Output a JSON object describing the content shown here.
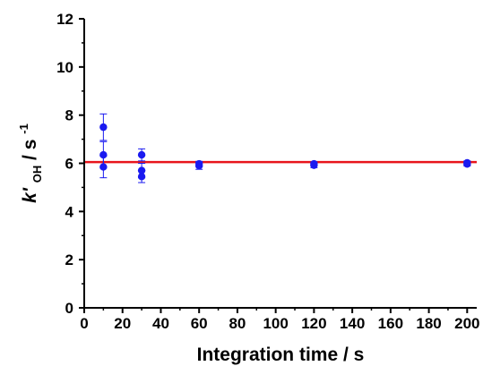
{
  "chart_data": {
    "type": "scatter",
    "title": "",
    "xlabel": "Integration time / s",
    "ylabel": {
      "k": "k'",
      "sub": "OH",
      "unit": " / s",
      "sup": "-1"
    },
    "xlim": [
      0,
      205
    ],
    "ylim": [
      0,
      12
    ],
    "xticks": [
      0,
      20,
      40,
      60,
      80,
      100,
      120,
      140,
      160,
      180,
      200
    ],
    "yticks": [
      0,
      2,
      4,
      6,
      8,
      10,
      12
    ],
    "grid": false,
    "legend": "none",
    "points": [
      {
        "x": 10,
        "y": 7.5,
        "err": 0.55
      },
      {
        "x": 10,
        "y": 6.35,
        "err": 0.55
      },
      {
        "x": 10,
        "y": 5.85,
        "err": 0.45
      },
      {
        "x": 30,
        "y": 6.35,
        "err": 0.25
      },
      {
        "x": 30,
        "y": 5.7,
        "err": 0.3
      },
      {
        "x": 30,
        "y": 5.45,
        "err": 0.25
      },
      {
        "x": 60,
        "y": 5.9,
        "err": 0.15
      },
      {
        "x": 60,
        "y": 5.98,
        "err": 0.1
      },
      {
        "x": 120,
        "y": 5.92,
        "err": 0.1
      },
      {
        "x": 120,
        "y": 5.98,
        "err": 0.08
      },
      {
        "x": 200,
        "y": 5.97,
        "err": 0.08
      },
      {
        "x": 200,
        "y": 6.02,
        "err": 0.08
      }
    ],
    "reference_line": {
      "y": 6.05,
      "x_from": 0,
      "x_to": 205,
      "color": "#e8141b"
    },
    "point_color": "#1a1af0",
    "axis_color": "#000000"
  }
}
